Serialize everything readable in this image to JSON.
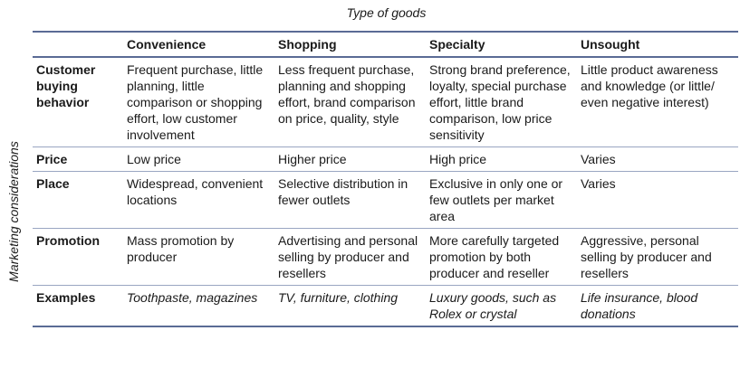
{
  "super_title": "Type of goods",
  "side_label": "Marketing considerations",
  "columns": [
    "",
    "Convenience",
    "Shopping",
    "Specialty",
    "Unsought"
  ],
  "rows": [
    {
      "label": "Customer buying behavior",
      "cells": [
        "Frequent purchase, little planning, little comparison or shopping effort, low customer involvement",
        "Less frequent purchase, planning and shopping effort, brand comparison on price, quality, style",
        "Strong brand preference, loyalty, special purchase effort, little brand comparison, low price sensitivity",
        "Little product awareness and knowledge (or little/ even negative interest)"
      ]
    },
    {
      "label": "Price",
      "cells": [
        "Low price",
        "Higher price",
        "High price",
        "Varies"
      ]
    },
    {
      "label": "Place",
      "cells": [
        "Widespread, convenient locations",
        "Selective distribution in fewer outlets",
        "Exclusive in only one or few outlets per market area",
        "Varies"
      ]
    },
    {
      "label": "Promotion",
      "cells": [
        "Mass promotion by producer",
        "Advertising and personal selling by producer and resellers",
        "More carefully targeted promotion by both producer and reseller",
        "Aggressive, personal selling by producer and resellers"
      ]
    },
    {
      "label": "Examples",
      "cells": [
        "Toothpaste, magazines",
        "TV, furniture, clothing",
        "Luxury goods, such as Rolex or crystal",
        "Life insurance, blood donations"
      ]
    }
  ]
}
